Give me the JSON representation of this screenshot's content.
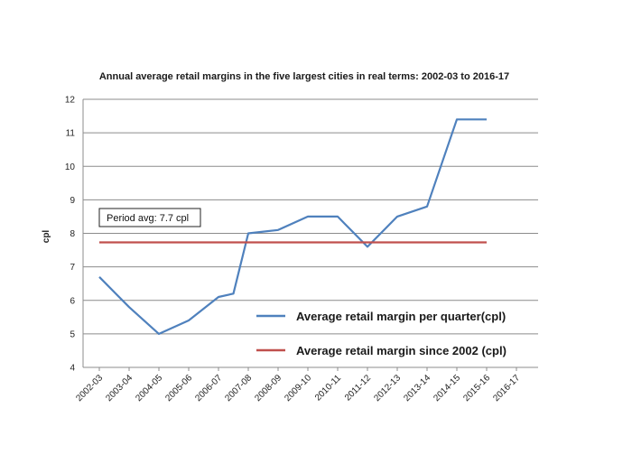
{
  "chart_data": {
    "type": "line",
    "title": "Annual average retail margins in the five largest cities in real terms: 2002-03 to 2016-17",
    "ylabel": "cpl",
    "xlabel": "",
    "categories": [
      "2002-03",
      "2003-04",
      "2004-05",
      "2005-06",
      "2006-07",
      "2007-08",
      "2008-09",
      "2009-10",
      "2010-11",
      "2011-12",
      "2012-13",
      "2013-14",
      "2014-15",
      "2015-16",
      "2016-17"
    ],
    "series": [
      {
        "name": "Average retail margin per quarter(cpl)",
        "color": "#4f81bd",
        "points": [
          {
            "x": 0,
            "y": 6.7
          },
          {
            "x": 1,
            "y": 5.8
          },
          {
            "x": 2,
            "y": 5.0
          },
          {
            "x": 3,
            "y": 5.4
          },
          {
            "x": 4,
            "y": 6.1
          },
          {
            "x": 4.5,
            "y": 6.2
          },
          {
            "x": 5,
            "y": 8.0
          },
          {
            "x": 6,
            "y": 8.1
          },
          {
            "x": 7,
            "y": 8.5
          },
          {
            "x": 8,
            "y": 8.5
          },
          {
            "x": 9,
            "y": 7.6
          },
          {
            "x": 10,
            "y": 8.5
          },
          {
            "x": 11,
            "y": 8.8
          },
          {
            "x": 12,
            "y": 11.4
          },
          {
            "x": 13,
            "y": 11.4
          }
        ]
      },
      {
        "name": "Average retail margin since 2002 (cpl)",
        "color": "#c0504d",
        "points": [
          {
            "x": 0,
            "y": 7.73
          },
          {
            "x": 13,
            "y": 7.73
          }
        ]
      }
    ],
    "ylim": [
      4,
      12
    ],
    "yticks": [
      "4",
      "5",
      "6",
      "7",
      "8",
      "9",
      "10",
      "11",
      "12"
    ],
    "grid": true,
    "legend_position": "bottom-right inside",
    "annotation": "Period avg: 7.7 cpl"
  }
}
